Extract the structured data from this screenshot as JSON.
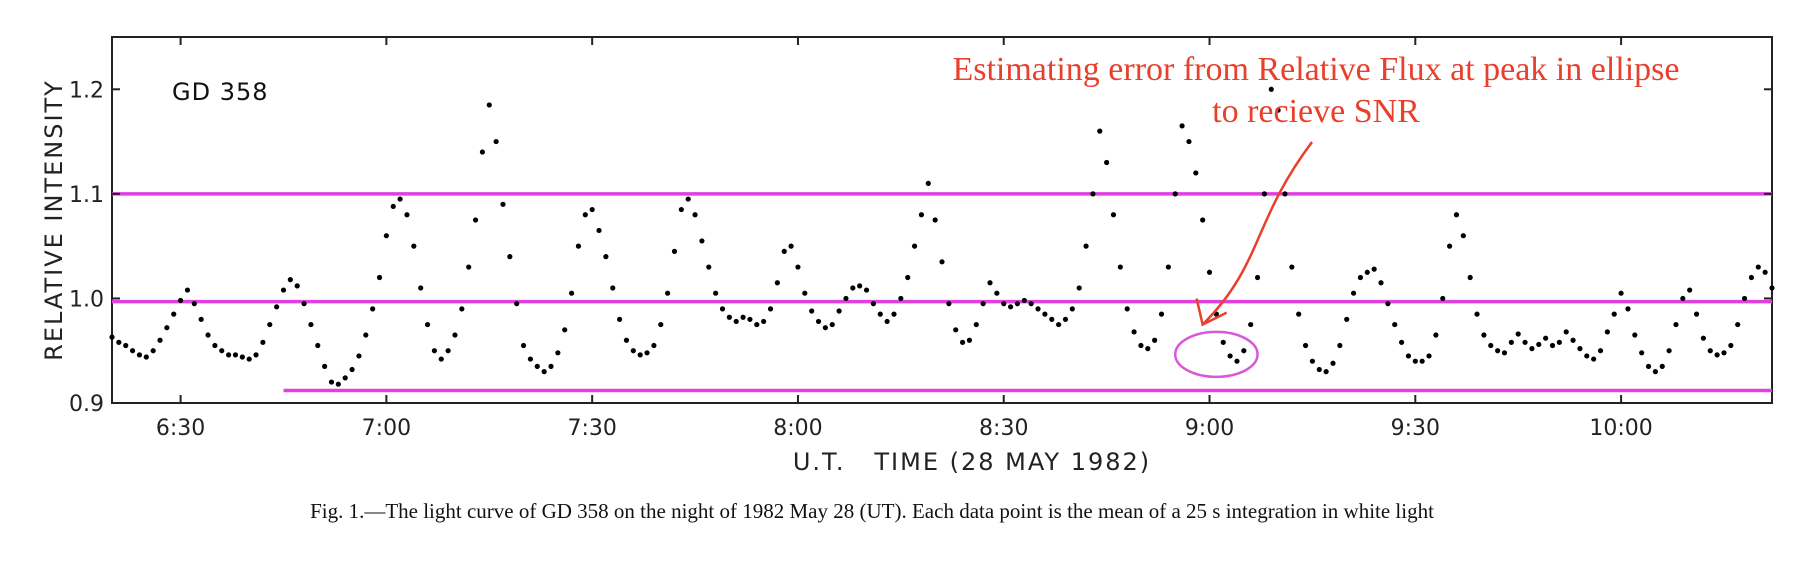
{
  "chart_data": {
    "type": "scatter",
    "title": "",
    "inset_label": "GD 358",
    "xlabel": "U.T.   TIME (28 MAY 1982)",
    "ylabel": "RELATIVE INTENSITY",
    "xlim": [
      "06:20",
      "10:22"
    ],
    "ylim": [
      0.9,
      1.25
    ],
    "x_ticks": [
      "6:30",
      "7:00",
      "7:30",
      "8:00",
      "8:30",
      "9:00",
      "9:30",
      "10:00"
    ],
    "y_ticks": [
      "0.9",
      "1.0",
      "1.1",
      "1.2"
    ],
    "grid": false,
    "legend": "none",
    "marker_color": "#000000",
    "annotation": {
      "lines": [
        "Estimating error from Relative Flux at peak in ellipse",
        "to recieve SNR"
      ],
      "color": "#e8402c",
      "arrow_tip": {
        "time": "8:59",
        "value": 0.975
      },
      "ellipse": {
        "time_from": "8:55",
        "time_to": "9:07",
        "value_from": 0.925,
        "value_to": 0.968
      }
    },
    "reference_lines": [
      {
        "value": 1.1,
        "from": "06:20",
        "to": "10:22",
        "color": "#e040e0"
      },
      {
        "value": 0.997,
        "from": "06:20",
        "to": "10:22",
        "color": "#e040e0"
      },
      {
        "value": 0.912,
        "from": "06:45",
        "to": "10:22",
        "color": "#e040e0"
      }
    ],
    "series": [
      {
        "points": [
          [
            "06:20",
            0.963
          ],
          [
            "06:21",
            0.958
          ],
          [
            "06:22",
            0.955
          ],
          [
            "06:23",
            0.95
          ],
          [
            "06:24",
            0.946
          ],
          [
            "06:25",
            0.944
          ],
          [
            "06:26",
            0.95
          ],
          [
            "06:27",
            0.96
          ],
          [
            "06:28",
            0.972
          ],
          [
            "06:29",
            0.985
          ],
          [
            "06:30",
            0.998
          ],
          [
            "06:31",
            1.008
          ],
          [
            "06:32",
            0.995
          ],
          [
            "06:33",
            0.98
          ],
          [
            "06:34",
            0.965
          ],
          [
            "06:35",
            0.955
          ],
          [
            "06:36",
            0.95
          ],
          [
            "06:37",
            0.946
          ],
          [
            "06:38",
            0.946
          ],
          [
            "06:39",
            0.944
          ],
          [
            "06:40",
            0.942
          ],
          [
            "06:41",
            0.946
          ],
          [
            "06:42",
            0.958
          ],
          [
            "06:43",
            0.975
          ],
          [
            "06:44",
            0.992
          ],
          [
            "06:45",
            1.008
          ],
          [
            "06:46",
            1.018
          ],
          [
            "06:47",
            1.012
          ],
          [
            "06:48",
            0.995
          ],
          [
            "06:49",
            0.975
          ],
          [
            "06:50",
            0.955
          ],
          [
            "06:51",
            0.935
          ],
          [
            "06:52",
            0.92
          ],
          [
            "06:53",
            0.918
          ],
          [
            "06:54",
            0.924
          ],
          [
            "06:55",
            0.932
          ],
          [
            "06:56",
            0.945
          ],
          [
            "06:57",
            0.965
          ],
          [
            "06:58",
            0.99
          ],
          [
            "06:59",
            1.02
          ],
          [
            "07:00",
            1.06
          ],
          [
            "07:01",
            1.088
          ],
          [
            "07:02",
            1.095
          ],
          [
            "07:03",
            1.08
          ],
          [
            "07:04",
            1.05
          ],
          [
            "07:05",
            1.01
          ],
          [
            "07:06",
            0.975
          ],
          [
            "07:07",
            0.95
          ],
          [
            "07:08",
            0.942
          ],
          [
            "07:09",
            0.95
          ],
          [
            "07:10",
            0.965
          ],
          [
            "07:11",
            0.99
          ],
          [
            "07:12",
            1.03
          ],
          [
            "07:13",
            1.075
          ],
          [
            "07:14",
            1.14
          ],
          [
            "07:15",
            1.185
          ],
          [
            "07:16",
            1.15
          ],
          [
            "07:17",
            1.09
          ],
          [
            "07:18",
            1.04
          ],
          [
            "07:19",
            0.995
          ],
          [
            "07:20",
            0.955
          ],
          [
            "07:21",
            0.942
          ],
          [
            "07:22",
            0.935
          ],
          [
            "07:23",
            0.93
          ],
          [
            "07:24",
            0.935
          ],
          [
            "07:25",
            0.948
          ],
          [
            "07:26",
            0.97
          ],
          [
            "07:27",
            1.005
          ],
          [
            "07:28",
            1.05
          ],
          [
            "07:29",
            1.08
          ],
          [
            "07:30",
            1.085
          ],
          [
            "07:31",
            1.065
          ],
          [
            "07:32",
            1.04
          ],
          [
            "07:33",
            1.01
          ],
          [
            "07:34",
            0.98
          ],
          [
            "07:35",
            0.96
          ],
          [
            "07:36",
            0.95
          ],
          [
            "07:37",
            0.946
          ],
          [
            "07:38",
            0.948
          ],
          [
            "07:39",
            0.955
          ],
          [
            "07:40",
            0.975
          ],
          [
            "07:41",
            1.005
          ],
          [
            "07:42",
            1.045
          ],
          [
            "07:43",
            1.085
          ],
          [
            "07:44",
            1.095
          ],
          [
            "07:45",
            1.08
          ],
          [
            "07:46",
            1.055
          ],
          [
            "07:47",
            1.03
          ],
          [
            "07:48",
            1.005
          ],
          [
            "07:49",
            0.99
          ],
          [
            "07:50",
            0.982
          ],
          [
            "07:51",
            0.978
          ],
          [
            "07:52",
            0.982
          ],
          [
            "07:53",
            0.98
          ],
          [
            "07:54",
            0.975
          ],
          [
            "07:55",
            0.978
          ],
          [
            "07:56",
            0.99
          ],
          [
            "07:57",
            1.015
          ],
          [
            "07:58",
            1.045
          ],
          [
            "07:59",
            1.05
          ],
          [
            "08:00",
            1.03
          ],
          [
            "08:01",
            1.005
          ],
          [
            "08:02",
            0.988
          ],
          [
            "08:03",
            0.978
          ],
          [
            "08:04",
            0.972
          ],
          [
            "08:05",
            0.975
          ],
          [
            "08:06",
            0.988
          ],
          [
            "08:07",
            1.0
          ],
          [
            "08:08",
            1.01
          ],
          [
            "08:09",
            1.012
          ],
          [
            "08:10",
            1.008
          ],
          [
            "08:11",
            0.995
          ],
          [
            "08:12",
            0.985
          ],
          [
            "08:13",
            0.978
          ],
          [
            "08:14",
            0.985
          ],
          [
            "08:15",
            1.0
          ],
          [
            "08:16",
            1.02
          ],
          [
            "08:17",
            1.05
          ],
          [
            "08:18",
            1.08
          ],
          [
            "08:19",
            1.11
          ],
          [
            "08:20",
            1.075
          ],
          [
            "08:21",
            1.035
          ],
          [
            "08:22",
            0.995
          ],
          [
            "08:23",
            0.97
          ],
          [
            "08:24",
            0.958
          ],
          [
            "08:25",
            0.96
          ],
          [
            "08:26",
            0.975
          ],
          [
            "08:27",
            0.995
          ],
          [
            "08:28",
            1.015
          ],
          [
            "08:29",
            1.005
          ],
          [
            "08:30",
            0.995
          ],
          [
            "08:31",
            0.992
          ],
          [
            "08:32",
            0.995
          ],
          [
            "08:33",
            0.998
          ],
          [
            "08:34",
            0.995
          ],
          [
            "08:35",
            0.99
          ],
          [
            "08:36",
            0.985
          ],
          [
            "08:37",
            0.98
          ],
          [
            "08:38",
            0.975
          ],
          [
            "08:39",
            0.98
          ],
          [
            "08:40",
            0.99
          ],
          [
            "08:41",
            1.01
          ],
          [
            "08:42",
            1.05
          ],
          [
            "08:43",
            1.1
          ],
          [
            "08:44",
            1.16
          ],
          [
            "08:45",
            1.13
          ],
          [
            "08:46",
            1.08
          ],
          [
            "08:47",
            1.03
          ],
          [
            "08:48",
            0.99
          ],
          [
            "08:49",
            0.968
          ],
          [
            "08:50",
            0.955
          ],
          [
            "08:51",
            0.952
          ],
          [
            "08:52",
            0.96
          ],
          [
            "08:53",
            0.985
          ],
          [
            "08:54",
            1.03
          ],
          [
            "08:55",
            1.1
          ],
          [
            "08:56",
            1.165
          ],
          [
            "08:57",
            1.15
          ],
          [
            "08:58",
            1.12
          ],
          [
            "08:59",
            1.075
          ],
          [
            "09:00",
            1.025
          ],
          [
            "09:01",
            0.985
          ],
          [
            "09:02",
            0.958
          ],
          [
            "09:03",
            0.945
          ],
          [
            "09:04",
            0.94
          ],
          [
            "09:05",
            0.95
          ],
          [
            "09:06",
            0.975
          ],
          [
            "09:07",
            1.02
          ],
          [
            "09:08",
            1.1
          ],
          [
            "09:09",
            1.2
          ],
          [
            "09:10",
            1.18
          ],
          [
            "09:11",
            1.1
          ],
          [
            "09:12",
            1.03
          ],
          [
            "09:13",
            0.985
          ],
          [
            "09:14",
            0.955
          ],
          [
            "09:15",
            0.94
          ],
          [
            "09:16",
            0.932
          ],
          [
            "09:17",
            0.93
          ],
          [
            "09:18",
            0.938
          ],
          [
            "09:19",
            0.955
          ],
          [
            "09:20",
            0.98
          ],
          [
            "09:21",
            1.005
          ],
          [
            "09:22",
            1.02
          ],
          [
            "09:23",
            1.025
          ],
          [
            "09:24",
            1.028
          ],
          [
            "09:25",
            1.015
          ],
          [
            "09:26",
            0.995
          ],
          [
            "09:27",
            0.975
          ],
          [
            "09:28",
            0.958
          ],
          [
            "09:29",
            0.945
          ],
          [
            "09:30",
            0.94
          ],
          [
            "09:31",
            0.94
          ],
          [
            "09:32",
            0.945
          ],
          [
            "09:33",
            0.965
          ],
          [
            "09:34",
            1.0
          ],
          [
            "09:35",
            1.05
          ],
          [
            "09:36",
            1.08
          ],
          [
            "09:37",
            1.06
          ],
          [
            "09:38",
            1.02
          ],
          [
            "09:39",
            0.985
          ],
          [
            "09:40",
            0.965
          ],
          [
            "09:41",
            0.955
          ],
          [
            "09:42",
            0.95
          ],
          [
            "09:43",
            0.948
          ],
          [
            "09:44",
            0.958
          ],
          [
            "09:45",
            0.966
          ],
          [
            "09:46",
            0.958
          ],
          [
            "09:47",
            0.952
          ],
          [
            "09:48",
            0.956
          ],
          [
            "09:49",
            0.962
          ],
          [
            "09:50",
            0.955
          ],
          [
            "09:51",
            0.958
          ],
          [
            "09:52",
            0.968
          ],
          [
            "09:53",
            0.96
          ],
          [
            "09:54",
            0.952
          ],
          [
            "09:55",
            0.945
          ],
          [
            "09:56",
            0.942
          ],
          [
            "09:57",
            0.95
          ],
          [
            "09:58",
            0.968
          ],
          [
            "09:59",
            0.985
          ],
          [
            "10:00",
            1.005
          ],
          [
            "10:01",
            0.99
          ],
          [
            "10:02",
            0.965
          ],
          [
            "10:03",
            0.948
          ],
          [
            "10:04",
            0.935
          ],
          [
            "10:05",
            0.93
          ],
          [
            "10:06",
            0.935
          ],
          [
            "10:07",
            0.95
          ],
          [
            "10:08",
            0.975
          ],
          [
            "10:09",
            1.0
          ],
          [
            "10:10",
            1.008
          ],
          [
            "10:11",
            0.985
          ],
          [
            "10:12",
            0.962
          ],
          [
            "10:13",
            0.95
          ],
          [
            "10:14",
            0.946
          ],
          [
            "10:15",
            0.948
          ],
          [
            "10:16",
            0.955
          ],
          [
            "10:17",
            0.975
          ],
          [
            "10:18",
            1.0
          ],
          [
            "10:19",
            1.02
          ],
          [
            "10:20",
            1.03
          ],
          [
            "10:21",
            1.025
          ],
          [
            "10:22",
            1.01
          ]
        ]
      }
    ]
  },
  "caption": "Fig. 1.—The light curve of GD 358 on the night of 1982 May 28 (UT). Each data point is the mean of a 25 s integration in white light"
}
